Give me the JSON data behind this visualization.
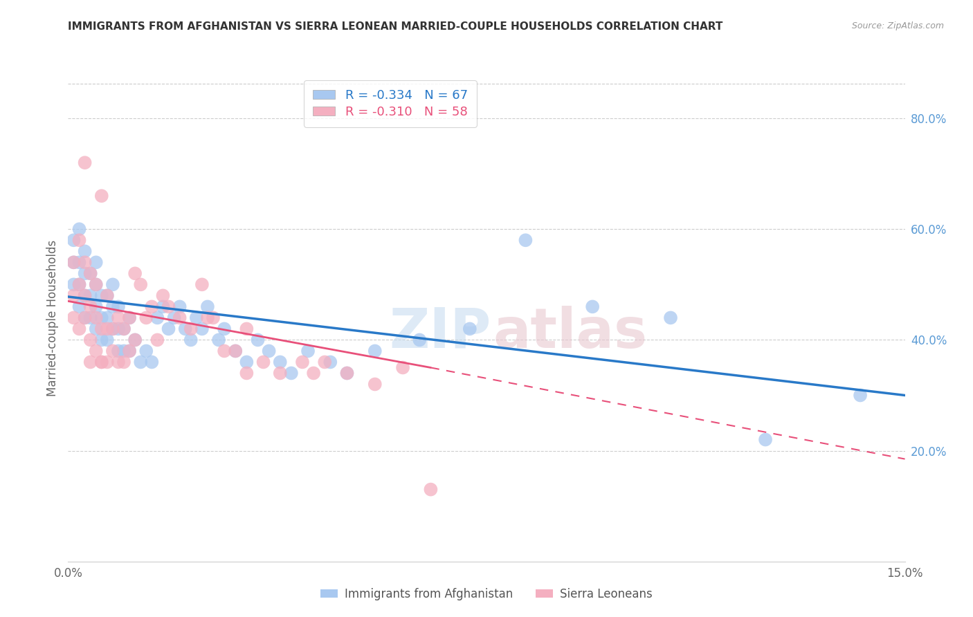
{
  "title": "IMMIGRANTS FROM AFGHANISTAN VS SIERRA LEONEAN MARRIED-COUPLE HOUSEHOLDS CORRELATION CHART",
  "source": "Source: ZipAtlas.com",
  "ylabel": "Married-couple Households",
  "xmin": 0.0,
  "xmax": 0.15,
  "ymin": 0.0,
  "ymax": 0.88,
  "ytick_positions": [
    0.2,
    0.4,
    0.6,
    0.8
  ],
  "ytick_labels": [
    "20.0%",
    "40.0%",
    "60.0%",
    "80.0%"
  ],
  "xtick_positions": [
    0.0,
    0.15
  ],
  "xtick_labels": [
    "0.0%",
    "15.0%"
  ],
  "blue_color": "#a8c8f0",
  "pink_color": "#f4afc0",
  "blue_line_color": "#2979c8",
  "pink_line_color": "#e8507a",
  "blue_line_y0": 0.478,
  "blue_line_y1": 0.3,
  "pink_line_y0": 0.47,
  "pink_line_y1_solid": 0.35,
  "pink_line_x1_solid": 0.065,
  "pink_line_y1_dash": 0.185,
  "watermark_zip_color": "#c8ddf0",
  "watermark_atlas_color": "#e8c8d0",
  "legend_r_blue": "-0.334",
  "legend_n_blue": "67",
  "legend_r_pink": "-0.310",
  "legend_n_pink": "58",
  "afg_x": [
    0.001,
    0.001,
    0.001,
    0.002,
    0.002,
    0.002,
    0.002,
    0.003,
    0.003,
    0.003,
    0.003,
    0.004,
    0.004,
    0.004,
    0.005,
    0.005,
    0.005,
    0.005,
    0.006,
    0.006,
    0.006,
    0.007,
    0.007,
    0.007,
    0.008,
    0.008,
    0.008,
    0.009,
    0.009,
    0.009,
    0.01,
    0.01,
    0.011,
    0.011,
    0.012,
    0.013,
    0.014,
    0.015,
    0.016,
    0.017,
    0.018,
    0.019,
    0.02,
    0.021,
    0.022,
    0.023,
    0.024,
    0.025,
    0.027,
    0.028,
    0.03,
    0.032,
    0.034,
    0.036,
    0.038,
    0.04,
    0.043,
    0.047,
    0.05,
    0.055,
    0.063,
    0.072,
    0.082,
    0.094,
    0.108,
    0.125,
    0.142
  ],
  "afg_y": [
    0.5,
    0.54,
    0.58,
    0.46,
    0.5,
    0.54,
    0.6,
    0.44,
    0.48,
    0.52,
    0.56,
    0.44,
    0.48,
    0.52,
    0.42,
    0.46,
    0.5,
    0.54,
    0.4,
    0.44,
    0.48,
    0.4,
    0.44,
    0.48,
    0.42,
    0.46,
    0.5,
    0.38,
    0.42,
    0.46,
    0.38,
    0.42,
    0.38,
    0.44,
    0.4,
    0.36,
    0.38,
    0.36,
    0.44,
    0.46,
    0.42,
    0.44,
    0.46,
    0.42,
    0.4,
    0.44,
    0.42,
    0.46,
    0.4,
    0.42,
    0.38,
    0.36,
    0.4,
    0.38,
    0.36,
    0.34,
    0.38,
    0.36,
    0.34,
    0.38,
    0.4,
    0.42,
    0.58,
    0.46,
    0.44,
    0.22,
    0.3
  ],
  "sl_x": [
    0.001,
    0.001,
    0.001,
    0.002,
    0.002,
    0.002,
    0.003,
    0.003,
    0.003,
    0.004,
    0.004,
    0.004,
    0.005,
    0.005,
    0.005,
    0.006,
    0.006,
    0.006,
    0.007,
    0.007,
    0.007,
    0.008,
    0.008,
    0.009,
    0.009,
    0.01,
    0.01,
    0.011,
    0.011,
    0.012,
    0.013,
    0.014,
    0.015,
    0.016,
    0.017,
    0.018,
    0.02,
    0.022,
    0.024,
    0.026,
    0.028,
    0.03,
    0.032,
    0.035,
    0.038,
    0.042,
    0.046,
    0.05,
    0.055,
    0.06,
    0.006,
    0.003,
    0.004,
    0.012,
    0.025,
    0.032,
    0.044,
    0.065
  ],
  "sl_y": [
    0.44,
    0.48,
    0.54,
    0.42,
    0.5,
    0.58,
    0.44,
    0.48,
    0.54,
    0.4,
    0.46,
    0.52,
    0.38,
    0.44,
    0.5,
    0.36,
    0.42,
    0.66,
    0.36,
    0.42,
    0.48,
    0.38,
    0.42,
    0.36,
    0.44,
    0.36,
    0.42,
    0.38,
    0.44,
    0.4,
    0.5,
    0.44,
    0.46,
    0.4,
    0.48,
    0.46,
    0.44,
    0.42,
    0.5,
    0.44,
    0.38,
    0.38,
    0.42,
    0.36,
    0.34,
    0.36,
    0.36,
    0.34,
    0.32,
    0.35,
    0.36,
    0.72,
    0.36,
    0.52,
    0.44,
    0.34,
    0.34,
    0.13
  ]
}
